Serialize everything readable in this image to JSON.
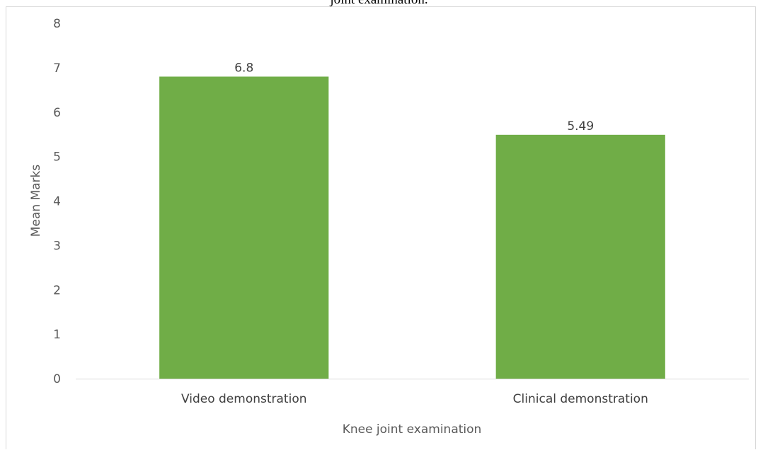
{
  "caption_fragment": "joint examination.",
  "chart_data": {
    "type": "bar",
    "categories": [
      "Video demonstration",
      "Clinical demonstration"
    ],
    "values": [
      6.8,
      5.49
    ],
    "data_labels": [
      "6.8",
      "5.49"
    ],
    "title": "",
    "xlabel": "Knee joint examination",
    "ylabel": "Mean Marks",
    "ylim": [
      0,
      8
    ],
    "yticks": [
      0,
      1,
      2,
      3,
      4,
      5,
      6,
      7,
      8
    ],
    "bar_color": "#70ad47",
    "grid": false,
    "legend": "none"
  }
}
